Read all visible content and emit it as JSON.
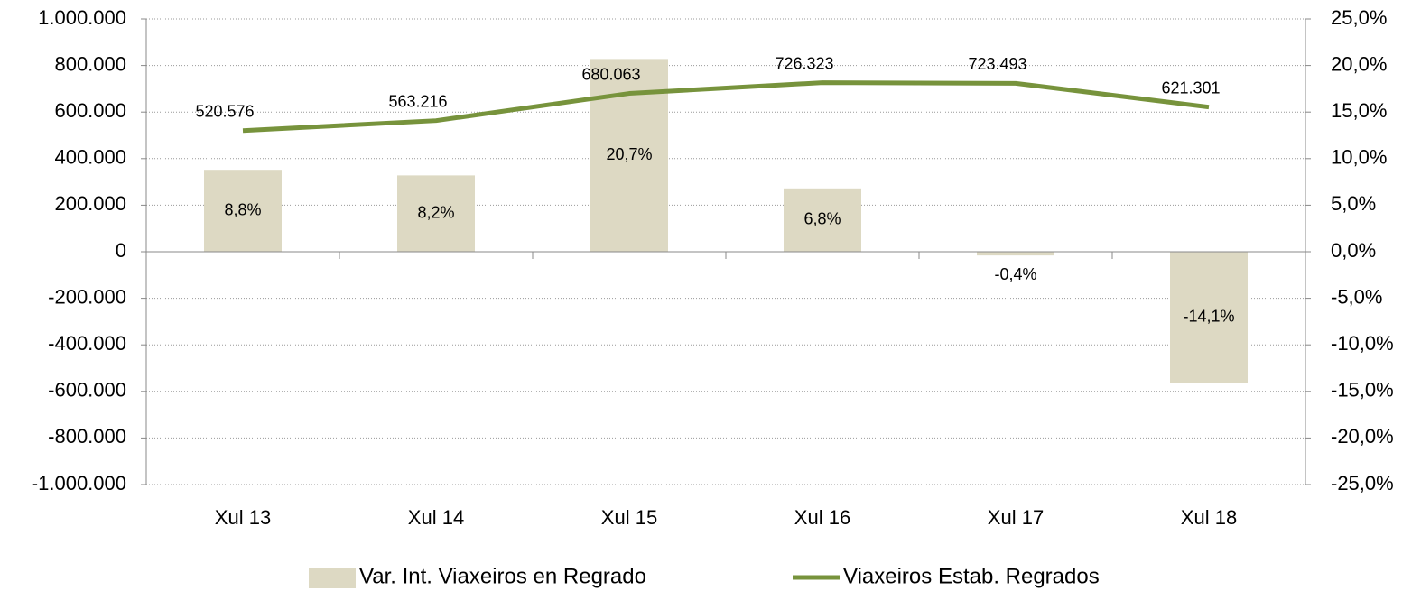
{
  "chart_data": {
    "type": "bar_line",
    "categories": [
      "Xul 13",
      "Xul 14",
      "Xul 15",
      "Xul 16",
      "Xul 17",
      "Xul 18"
    ],
    "series": [
      {
        "name": "Var. Int. Viaxeiros en Regrado",
        "type": "bar",
        "axis": "y2",
        "color": "#ddd9c3",
        "values": [
          8.8,
          8.2,
          20.7,
          6.8,
          -0.4,
          -14.1
        ],
        "value_labels": [
          "8,8%",
          "8,2%",
          "20,7%",
          "6,8%",
          "-0,4%",
          "-14,1%"
        ]
      },
      {
        "name": "Viaxeiros Estab. Regrados",
        "type": "line",
        "axis": "y",
        "color": "#77933c",
        "values": [
          520576,
          563216,
          680063,
          726323,
          723493,
          621301
        ],
        "value_labels": [
          "520.576",
          "563.216",
          "680.063",
          "726.323",
          "723.493",
          "621.301"
        ]
      }
    ],
    "ylim": [
      -1000000,
      1000000
    ],
    "yticks": [
      {
        "value": -1000000,
        "label": "-1.000.000"
      },
      {
        "value": -800000,
        "label": "-800.000"
      },
      {
        "value": -600000,
        "label": "-600.000"
      },
      {
        "value": -400000,
        "label": "-400.000"
      },
      {
        "value": -200000,
        "label": "-200.000"
      },
      0,
      {
        "value": 200000,
        "label": "200.000"
      },
      {
        "value": 400000,
        "label": "400.000"
      },
      {
        "value": 600000,
        "label": "600.000"
      },
      {
        "value": 800000,
        "label": "800.000"
      },
      {
        "value": 1000000,
        "label": "1.000.000"
      }
    ],
    "y2lim": [
      -25,
      25
    ],
    "y2ticks": [
      {
        "value": -25,
        "label": "-25,0%"
      },
      {
        "value": -20,
        "label": "-20,0%"
      },
      {
        "value": -15,
        "label": "-15,0%"
      },
      {
        "value": -10,
        "label": "-10,0%"
      },
      {
        "value": -5,
        "label": "-5,0%"
      },
      {
        "value": 0,
        "label": "0,0%"
      },
      {
        "value": 5,
        "label": "5,0%"
      },
      {
        "value": 10,
        "label": "10,0%"
      },
      {
        "value": 15,
        "label": "15,0%"
      },
      {
        "value": 20,
        "label": "20,0%"
      },
      {
        "value": 25,
        "label": "25,0%"
      }
    ],
    "grid": true,
    "legend": "bottom"
  }
}
